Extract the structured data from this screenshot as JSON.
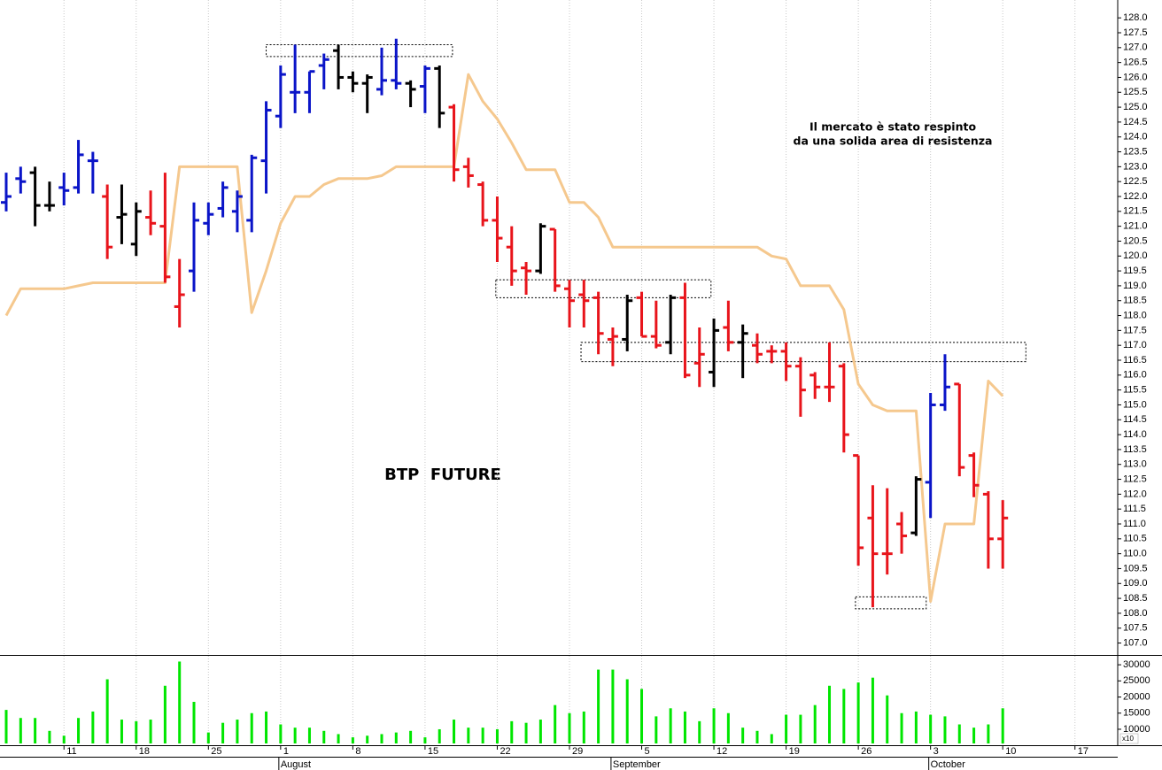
{
  "chart_data": {
    "type": "ohlc",
    "title": "BTP  FUTURE",
    "annotations": [
      "Il mercato è stato respinto",
      "da una solida area di resistenza"
    ],
    "categories": [
      null,
      null,
      null,
      null,
      "11",
      null,
      null,
      null,
      null,
      "18",
      null,
      null,
      null,
      null,
      "25",
      null,
      null,
      null,
      null,
      "1",
      null,
      null,
      null,
      null,
      "8",
      null,
      null,
      null,
      null,
      "15",
      null,
      null,
      null,
      null,
      "22",
      null,
      null,
      null,
      null,
      "29",
      null,
      null,
      null,
      null,
      "5",
      null,
      null,
      null,
      null,
      "12",
      null,
      null,
      null,
      null,
      "19",
      null,
      null,
      null,
      null,
      "26",
      null,
      null,
      null,
      null,
      "3",
      null,
      null,
      null,
      null,
      "10",
      null,
      null,
      null,
      null,
      "17",
      null
    ],
    "months": [
      null,
      null,
      null,
      null,
      null,
      null,
      null,
      null,
      null,
      null,
      null,
      null,
      null,
      null,
      null,
      null,
      null,
      null,
      null,
      "August",
      null,
      null,
      null,
      null,
      null,
      null,
      null,
      null,
      null,
      null,
      null,
      null,
      null,
      null,
      null,
      null,
      null,
      null,
      null,
      null,
      null,
      null,
      "September",
      null,
      null,
      null,
      null,
      null,
      null,
      null,
      null,
      null,
      null,
      null,
      null,
      null,
      null,
      null,
      null,
      null,
      null,
      null,
      null,
      null,
      "October",
      null,
      null,
      null,
      null,
      null,
      null,
      null,
      null,
      null,
      null,
      null
    ],
    "xlim": [
      -0.43,
      76.96
    ],
    "ylim": [
      106.6,
      128.6
    ],
    "yticks": [
      {
        "value": 107,
        "label": "107.0"
      },
      107.5,
      {
        "value": 108,
        "label": "108.0"
      },
      108.5,
      {
        "value": 109,
        "label": "109.0"
      },
      109.5,
      {
        "value": 110,
        "label": "110.0"
      },
      110.5,
      {
        "value": 111,
        "label": "111.0"
      },
      111.5,
      {
        "value": 112,
        "label": "112.0"
      },
      112.5,
      {
        "value": 113,
        "label": "113.0"
      },
      113.5,
      {
        "value": 114,
        "label": "114.0"
      },
      114.5,
      {
        "value": 115,
        "label": "115.0"
      },
      115.5,
      {
        "value": 116,
        "label": "116.0"
      },
      116.5,
      {
        "value": 117,
        "label": "117.0"
      },
      117.5,
      {
        "value": 118,
        "label": "118.0"
      },
      118.5,
      {
        "value": 119,
        "label": "119.0"
      },
      119.5,
      {
        "value": 120,
        "label": "120.0"
      },
      120.5,
      {
        "value": 121,
        "label": "121.0"
      },
      121.5,
      {
        "value": 122,
        "label": "122.0"
      },
      122.5,
      {
        "value": 123,
        "label": "123.0"
      },
      123.5,
      {
        "value": 124,
        "label": "124.0"
      },
      124.5,
      {
        "value": 125,
        "label": "125.0"
      },
      125.5,
      {
        "value": 126,
        "label": "126.0"
      },
      126.5,
      {
        "value": 127,
        "label": "127.0"
      },
      127.5,
      {
        "value": 128,
        "label": "128.0"
      }
    ],
    "grid": true,
    "high": [
      122.8,
      123.0,
      123.0,
      122.5,
      122.8,
      123.9,
      123.5,
      122.4,
      122.4,
      121.8,
      122.2,
      122.8,
      119.9,
      121.8,
      121.8,
      122.5,
      122.2,
      123.4,
      125.2,
      126.4,
      127.1,
      126.2,
      126.8,
      127.1,
      126.2,
      126.1,
      127.0,
      127.3,
      125.9,
      126.4,
      126.4,
      125.1,
      123.3,
      122.5,
      122.0,
      121.0,
      119.8,
      121.1,
      120.9,
      119.2,
      119.2,
      118.8,
      117.6,
      118.7,
      118.8,
      118.5,
      118.7,
      119.1,
      117.6,
      117.9,
      118.5,
      117.7,
      117.4,
      117.0,
      117.1,
      116.6,
      116.1,
      117.1,
      116.4,
      113.3,
      112.3,
      112.2,
      111.4,
      112.6,
      115.4,
      116.7,
      115.7,
      113.4,
      112.1,
      111.8,
      null,
      null,
      null,
      null,
      null,
      null
    ],
    "low": [
      121.5,
      122.1,
      121.0,
      121.5,
      121.7,
      122.1,
      122.1,
      119.9,
      120.4,
      120.0,
      120.7,
      119.1,
      117.6,
      118.8,
      120.7,
      121.3,
      120.8,
      120.8,
      122.1,
      124.3,
      124.8,
      124.8,
      125.6,
      125.6,
      125.5,
      124.8,
      125.4,
      125.6,
      125.0,
      124.8,
      124.3,
      122.5,
      122.3,
      121.0,
      119.8,
      119.0,
      118.7,
      119.4,
      118.8,
      117.6,
      117.6,
      116.7,
      116.3,
      116.8,
      117.3,
      116.9,
      116.7,
      115.9,
      115.6,
      115.6,
      116.8,
      115.9,
      116.4,
      116.4,
      115.8,
      114.6,
      115.2,
      115.1,
      113.4,
      109.6,
      108.2,
      109.3,
      110.0,
      110.6,
      111.2,
      114.8,
      112.6,
      111.9,
      109.5,
      109.5,
      null,
      null,
      null,
      null,
      null,
      null
    ],
    "open": [
      121.8,
      122.6,
      122.8,
      121.7,
      122.3,
      122.3,
      123.2,
      122.0,
      121.3,
      120.4,
      121.3,
      121.0,
      118.3,
      119.5,
      121.1,
      121.6,
      121.5,
      121.2,
      123.2,
      124.7,
      125.5,
      125.5,
      126.4,
      126.9,
      126.0,
      125.8,
      125.6,
      125.9,
      125.8,
      125.7,
      126.3,
      125.0,
      123.0,
      122.4,
      121.2,
      120.3,
      119.6,
      119.5,
      120.9,
      118.9,
      118.7,
      118.6,
      117.2,
      117.2,
      118.6,
      117.3,
      117.1,
      118.6,
      116.4,
      116.1,
      117.6,
      117.1,
      117.0,
      116.8,
      116.8,
      116.3,
      116.0,
      115.6,
      116.3,
      113.3,
      111.2,
      110.0,
      111.0,
      110.7,
      112.4,
      115.0,
      115.7,
      113.3,
      112.0,
      110.5,
      null,
      null,
      null,
      null,
      null,
      null
    ],
    "close": [
      122.0,
      122.5,
      121.7,
      121.7,
      122.2,
      123.4,
      123.2,
      120.3,
      121.4,
      121.5,
      121.1,
      119.3,
      118.7,
      121.2,
      121.4,
      122.3,
      122.0,
      123.3,
      124.9,
      126.1,
      125.5,
      126.2,
      126.6,
      126.0,
      125.8,
      126.0,
      125.9,
      125.8,
      125.6,
      126.3,
      124.8,
      122.9,
      122.7,
      121.2,
      120.6,
      119.5,
      119.5,
      121.0,
      119.0,
      118.5,
      118.5,
      117.4,
      117.3,
      118.5,
      117.3,
      117.0,
      118.6,
      116.0,
      116.7,
      117.5,
      117.1,
      117.4,
      116.7,
      116.8,
      116.3,
      115.5,
      115.6,
      115.6,
      114.0,
      110.2,
      110.0,
      110.0,
      110.6,
      112.5,
      115.0,
      115.6,
      112.9,
      112.3,
      110.5,
      111.2,
      null,
      null,
      null,
      null,
      null,
      null
    ],
    "trend": [
      "up",
      "up",
      "flat",
      "flat",
      "up",
      "up",
      "up",
      "down",
      "flat",
      "flat",
      "down",
      "down",
      "down",
      "up",
      "up",
      "up",
      "up",
      "up",
      "up",
      "up",
      "up",
      "up",
      "up",
      "flat",
      "flat",
      "flat",
      "up",
      "up",
      "flat",
      "up",
      "flat",
      "down",
      "down",
      "down",
      "down",
      "down",
      "down",
      "flat",
      "down",
      "down",
      "down",
      "down",
      "down",
      "flat",
      "down",
      "down",
      "flat",
      "down",
      "down",
      "flat",
      "down",
      "flat",
      "down",
      "down",
      "down",
      "down",
      "down",
      "down",
      "down",
      "down",
      "down",
      "down",
      "down",
      "flat",
      "up",
      "up",
      "down",
      "down",
      "down",
      "down",
      null,
      null,
      null,
      null,
      null,
      null
    ],
    "trend_colors": {
      "up": "#0a14c8",
      "down": "#e8141b",
      "flat": "#000000"
    },
    "line": {
      "color": "#f5c88e",
      "values": [
        118.0,
        118.9,
        118.9,
        118.9,
        118.9,
        119.0,
        119.1,
        119.1,
        119.1,
        119.1,
        119.1,
        119.1,
        123.0,
        123.0,
        123.0,
        123.0,
        123.0,
        118.1,
        119.5,
        121.1,
        122.0,
        122.0,
        122.4,
        122.6,
        122.6,
        122.6,
        122.7,
        123.0,
        123.0,
        123.0,
        123.0,
        123.0,
        126.1,
        125.2,
        124.6,
        123.8,
        122.9,
        122.9,
        122.9,
        121.8,
        121.8,
        121.3,
        120.3,
        120.3,
        120.3,
        120.3,
        120.3,
        120.3,
        120.3,
        120.3,
        120.3,
        120.3,
        120.3,
        120.0,
        119.9,
        119.0,
        119.0,
        119.0,
        118.2,
        115.7,
        115.0,
        114.8,
        114.8,
        114.8,
        108.4,
        111.0,
        111.0,
        111.0,
        115.8,
        115.3,
        null,
        null,
        null,
        null,
        null,
        null
      ]
    },
    "zones": [
      {
        "x": [
          18,
          30.9
        ],
        "y": [
          126.7,
          127.1
        ]
      },
      {
        "x": [
          33.9,
          48.8
        ],
        "y": [
          118.6,
          119.2
        ]
      },
      {
        "x": [
          39.8,
          70.6
        ],
        "y": [
          116.45,
          117.1
        ]
      },
      {
        "x": [
          58.8,
          63.7
        ],
        "y": [
          108.15,
          108.55
        ]
      }
    ],
    "volume": {
      "color": "#00e600",
      "ylim": [
        5600,
        32500
      ],
      "yticks": [
        10000,
        15000,
        20000,
        25000,
        30000
      ],
      "unit_label": "x10",
      "values": [
        16000,
        13500,
        13500,
        9500,
        8000,
        13500,
        15500,
        25500,
        13000,
        12500,
        13000,
        23500,
        31000,
        18500,
        9000,
        12000,
        13000,
        15000,
        15500,
        11500,
        10500,
        10500,
        9500,
        8500,
        7500,
        8000,
        8500,
        9000,
        9500,
        7500,
        10000,
        13000,
        10500,
        10500,
        10000,
        12500,
        12000,
        13000,
        17500,
        15000,
        15500,
        28500,
        28500,
        25500,
        22500,
        14000,
        16500,
        15500,
        12500,
        16500,
        15000,
        10500,
        9500,
        8500,
        14500,
        14500,
        17500,
        23500,
        22500,
        24500,
        26000,
        20500,
        15000,
        15500,
        14500,
        14000,
        11500,
        10500,
        11500,
        16500,
        null,
        null,
        null,
        null,
        null,
        null
      ]
    }
  }
}
